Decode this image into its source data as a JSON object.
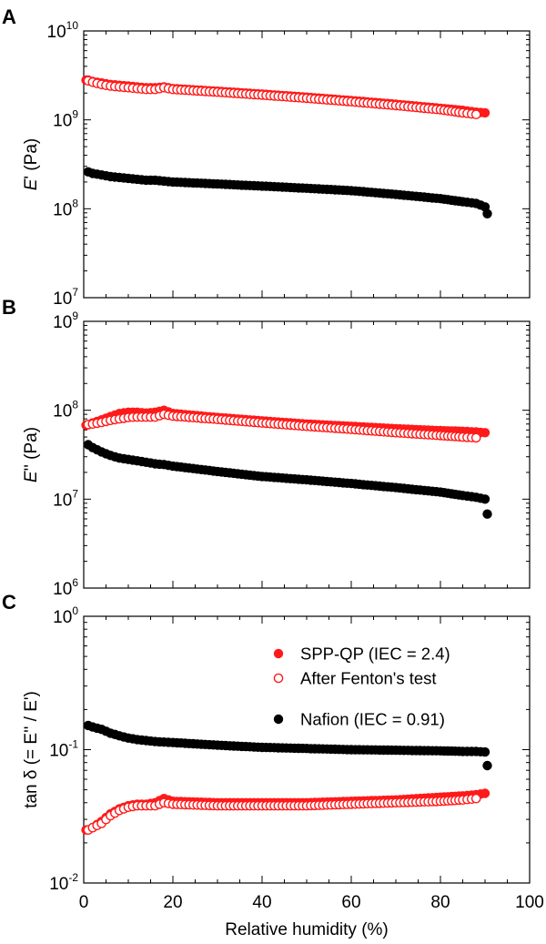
{
  "chart_data": {
    "type": "scatter",
    "xlabel": "Relative humidity (%)",
    "xlim": [
      0,
      100
    ],
    "x_ticks": [
      "0",
      "20",
      "40",
      "60",
      "80",
      "100"
    ],
    "legend": {
      "placement": "panel C, upper-right",
      "entries": [
        {
          "label": "SPP-QP (IEC = 2.4)",
          "marker": "filled",
          "color": "#ff1a1a"
        },
        {
          "label": "After Fenton's test",
          "marker": "open",
          "color": "#ff1a1a"
        },
        {
          "label": "Nafion (IEC = 0.91)",
          "marker": "filled",
          "color": "#000000"
        }
      ]
    },
    "panels": [
      {
        "letter": "A",
        "ylabel_italic": "E",
        "ylabel_rest": "' (Pa)",
        "yscale": "log",
        "ylim": [
          10000000.0,
          10000000000.0
        ],
        "y_ticks": [
          {
            "base": "10",
            "exp": "7"
          },
          {
            "base": "10",
            "exp": "8"
          },
          {
            "base": "10",
            "exp": "9"
          },
          {
            "base": "10",
            "exp": "10"
          }
        ],
        "series": [
          {
            "style": "filled",
            "color": "#ff1a1a",
            "x": [
              0.5,
              1,
              2,
              4,
              6,
              8,
              10,
              12,
              14,
              16,
              18,
              20,
              30,
              40,
              50,
              60,
              70,
              80,
              85,
              88,
              90
            ],
            "y": [
              2800000000.0,
              2800000000.0,
              2700000000.0,
              2600000000.0,
              2500000000.0,
              2450000000.0,
              2400000000.0,
              2350000000.0,
              2300000000.0,
              2300000000.0,
              2350000000.0,
              2250000000.0,
              2100000000.0,
              1950000000.0,
              1800000000.0,
              1650000000.0,
              1500000000.0,
              1350000000.0,
              1280000000.0,
              1220000000.0,
              1200000000.0
            ]
          },
          {
            "style": "open",
            "color": "#ff1a1a",
            "x": [
              1,
              2,
              4,
              6,
              8,
              10,
              12,
              14,
              16,
              18,
              20,
              30,
              40,
              50,
              60,
              70,
              80,
              85,
              88
            ],
            "y": [
              2750000000.0,
              2650000000.0,
              2500000000.0,
              2400000000.0,
              2350000000.0,
              2300000000.0,
              2250000000.0,
              2200000000.0,
              2200000000.0,
              2300000000.0,
              2200000000.0,
              2050000000.0,
              1900000000.0,
              1750000000.0,
              1600000000.0,
              1450000000.0,
              1300000000.0,
              1200000000.0,
              1150000000.0
            ]
          },
          {
            "style": "filled",
            "color": "#000000",
            "x": [
              1,
              2,
              4,
              6,
              8,
              10,
              12,
              14,
              16,
              18,
              20,
              30,
              40,
              50,
              60,
              70,
              80,
              85,
              88,
              90,
              90.5
            ],
            "y": [
              260000000.0,
              250000000.0,
              240000000.0,
              230000000.0,
              225000000.0,
              220000000.0,
              215000000.0,
              210000000.0,
              210000000.0,
              205000000.0,
              200000000.0,
              190000000.0,
              180000000.0,
              170000000.0,
              160000000.0,
              145000000.0,
              130000000.0,
              120000000.0,
              115000000.0,
              105000000.0,
              88000000.0
            ]
          }
        ]
      },
      {
        "letter": "B",
        "ylabel_italic": "E",
        "ylabel_rest": "'' (Pa)",
        "yscale": "log",
        "ylim": [
          1000000.0,
          1000000000.0
        ],
        "y_ticks": [
          {
            "base": "10",
            "exp": "6"
          },
          {
            "base": "10",
            "exp": "7"
          },
          {
            "base": "10",
            "exp": "8"
          },
          {
            "base": "10",
            "exp": "9"
          }
        ],
        "series": [
          {
            "style": "filled",
            "color": "#ff1a1a",
            "x": [
              0.5,
              1,
              2,
              4,
              6,
              8,
              10,
              12,
              14,
              16,
              18,
              20,
              30,
              40,
              50,
              60,
              70,
              80,
              85,
              88,
              90
            ],
            "y": [
              68000000.0,
              69000000.0,
              72000000.0,
              78000000.0,
              85000000.0,
              92000000.0,
              95000000.0,
              95000000.0,
              93000000.0,
              95000000.0,
              100000000.0,
              92000000.0,
              83000000.0,
              76000000.0,
              70000000.0,
              66000000.0,
              62000000.0,
              59000000.0,
              58000000.0,
              57000000.0,
              56000000.0
            ]
          },
          {
            "style": "open",
            "color": "#ff1a1a",
            "x": [
              1,
              2,
              4,
              6,
              8,
              10,
              12,
              14,
              16,
              18,
              20,
              30,
              40,
              50,
              60,
              70,
              80,
              85,
              88
            ],
            "y": [
              69000000.0,
              70000000.0,
              73000000.0,
              77000000.0,
              80000000.0,
              83000000.0,
              84000000.0,
              84000000.0,
              84000000.0,
              90000000.0,
              86000000.0,
              79000000.0,
              72000000.0,
              66000000.0,
              61000000.0,
              56000000.0,
              52000000.0,
              50000000.0,
              49000000.0
            ]
          },
          {
            "style": "filled",
            "color": "#000000",
            "x": [
              1,
              2,
              4,
              6,
              8,
              10,
              12,
              14,
              16,
              18,
              20,
              30,
              40,
              50,
              60,
              70,
              80,
              85,
              88,
              90,
              90.5
            ],
            "y": [
              41000000.0,
              38000000.0,
              34000000.0,
              31000000.0,
              29000000.0,
              28000000.0,
              27000000.0,
              26000000.0,
              25000000.0,
              24500000.0,
              23500000.0,
              20500000.0,
              18000000.0,
              16500000.0,
              15000000.0,
              13500000.0,
              12000000.0,
              11000000.0,
              10500000.0,
              10000000.0,
              6800000.0
            ]
          }
        ]
      },
      {
        "letter": "C",
        "ylabel": "tan δ (= E'' / E')",
        "yscale": "log",
        "ylim": [
          0.01,
          1
        ],
        "y_ticks": [
          {
            "base": "10",
            "exp": "-2"
          },
          {
            "base": "10",
            "exp": "-1"
          },
          {
            "base": "10",
            "exp": "0"
          }
        ],
        "series": [
          {
            "style": "filled",
            "color": "#ff1a1a",
            "x": [
              0.5,
              1,
              2,
              4,
              6,
              8,
              10,
              12,
              14,
              16,
              18,
              20,
              30,
              40,
              50,
              60,
              70,
              80,
              85,
              88,
              90
            ],
            "y": [
              0.025,
              0.025,
              0.026,
              0.029,
              0.033,
              0.036,
              0.038,
              0.039,
              0.039,
              0.04,
              0.043,
              0.041,
              0.04,
              0.04,
              0.04,
              0.041,
              0.042,
              0.044,
              0.045,
              0.046,
              0.047
            ]
          },
          {
            "style": "open",
            "color": "#ff1a1a",
            "x": [
              1,
              2,
              4,
              6,
              8,
              10,
              12,
              14,
              16,
              18,
              20,
              30,
              40,
              50,
              60,
              70,
              80,
              85,
              88
            ],
            "y": [
              0.025,
              0.026,
              0.028,
              0.032,
              0.035,
              0.037,
              0.038,
              0.038,
              0.038,
              0.04,
              0.039,
              0.038,
              0.038,
              0.038,
              0.039,
              0.04,
              0.041,
              0.042,
              0.043
            ]
          },
          {
            "style": "filled",
            "color": "#000000",
            "x": [
              1,
              2,
              4,
              6,
              8,
              10,
              12,
              14,
              16,
              18,
              20,
              30,
              40,
              50,
              60,
              70,
              80,
              85,
              88,
              90,
              90.5
            ],
            "y": [
              0.152,
              0.148,
              0.142,
              0.133,
              0.127,
              0.122,
              0.119,
              0.117,
              0.115,
              0.114,
              0.113,
              0.108,
              0.104,
              0.102,
              0.1,
              0.099,
              0.098,
              0.097,
              0.097,
              0.096,
              0.076
            ]
          }
        ]
      }
    ]
  }
}
